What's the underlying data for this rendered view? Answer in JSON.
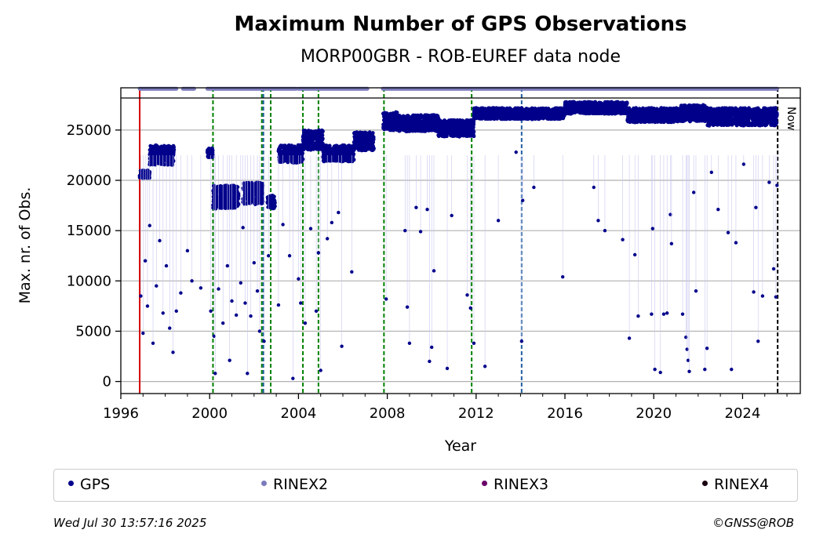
{
  "chart_data": {
    "type": "scatter",
    "title": "Maximum Number of GPS Observations",
    "subtitle": "MORP00GBR - ROB-EUREF data node",
    "xlabel": "Year",
    "ylabel": "Max. nr. of Obs.",
    "xlim": [
      1996,
      2026.6
    ],
    "ylim": [
      -1200,
      29200
    ],
    "xticks": [
      1996,
      2000,
      2004,
      2008,
      2012,
      2016,
      2020,
      2024
    ],
    "yticks": [
      0,
      5000,
      10000,
      15000,
      20000,
      25000
    ],
    "grid": "horizontal",
    "legend_position": "bottom",
    "now_label": "Now",
    "now_x": 2025.58,
    "series": [
      {
        "name": "GPS",
        "color": "#00008b",
        "bands": [
          [
            1996.85,
            1997.3,
            19800,
            21000
          ],
          [
            1997.3,
            1998.4,
            20500,
            23500
          ],
          [
            1999.9,
            2000.15,
            21800,
            23200
          ],
          [
            2000.15,
            2001.3,
            16000,
            19500
          ],
          [
            2001.5,
            2002.4,
            16500,
            19800
          ],
          [
            2002.6,
            2002.95,
            16500,
            18500
          ],
          [
            2003.1,
            2004.2,
            20800,
            23500
          ],
          [
            2004.2,
            2005.1,
            22000,
            25000
          ],
          [
            2005.1,
            2006.5,
            21000,
            23500
          ],
          [
            2006.5,
            2007.4,
            22000,
            24800
          ],
          [
            2007.8,
            2008.5,
            24000,
            26800
          ],
          [
            2008.5,
            2010.3,
            24000,
            26500
          ],
          [
            2010.3,
            2011.9,
            23500,
            26000
          ],
          [
            2011.9,
            2016.0,
            25500,
            27200
          ],
          [
            2016.0,
            2018.8,
            26000,
            27800
          ],
          [
            2018.8,
            2021.2,
            25000,
            27200
          ],
          [
            2021.2,
            2022.4,
            25000,
            27500
          ],
          [
            2022.4,
            2025.56,
            24500,
            27200
          ]
        ],
        "outliers": [
          [
            1996.9,
            8500
          ],
          [
            1997.0,
            4800
          ],
          [
            1997.1,
            12000
          ],
          [
            1997.2,
            7500
          ],
          [
            1997.3,
            15500
          ],
          [
            1997.45,
            3800
          ],
          [
            1997.6,
            9500
          ],
          [
            1997.75,
            14000
          ],
          [
            1997.9,
            6800
          ],
          [
            1998.05,
            11500
          ],
          [
            1998.2,
            5300
          ],
          [
            1998.35,
            2900
          ],
          [
            1998.5,
            7000
          ],
          [
            1998.7,
            8800
          ],
          [
            1999.0,
            13000
          ],
          [
            1999.2,
            10000
          ],
          [
            1999.6,
            9300
          ],
          [
            2000.05,
            7000
          ],
          [
            2000.2,
            4500
          ],
          [
            2000.25,
            800
          ],
          [
            2000.4,
            9200
          ],
          [
            2000.6,
            5800
          ],
          [
            2000.8,
            11500
          ],
          [
            2000.9,
            2100
          ],
          [
            2001.0,
            8000
          ],
          [
            2001.2,
            6600
          ],
          [
            2001.4,
            9800
          ],
          [
            2001.5,
            15300
          ],
          [
            2001.6,
            7800
          ],
          [
            2001.7,
            800
          ],
          [
            2001.85,
            6500
          ],
          [
            2002.0,
            11800
          ],
          [
            2002.15,
            9000
          ],
          [
            2002.25,
            5000
          ],
          [
            2002.45,
            4000
          ],
          [
            2002.65,
            12500
          ],
          [
            2003.1,
            7600
          ],
          [
            2003.3,
            15600
          ],
          [
            2003.6,
            12500
          ],
          [
            2003.75,
            300
          ],
          [
            2004.0,
            10200
          ],
          [
            2004.1,
            7800
          ],
          [
            2004.3,
            5800
          ],
          [
            2004.55,
            15200
          ],
          [
            2004.8,
            7000
          ],
          [
            2004.9,
            12800
          ],
          [
            2005.0,
            1100
          ],
          [
            2005.3,
            14200
          ],
          [
            2005.5,
            15800
          ],
          [
            2005.8,
            16800
          ],
          [
            2005.95,
            3500
          ],
          [
            2006.4,
            10900
          ],
          [
            2007.95,
            8200
          ],
          [
            2008.8,
            15000
          ],
          [
            2008.9,
            7400
          ],
          [
            2009.0,
            3800
          ],
          [
            2009.3,
            17300
          ],
          [
            2009.5,
            14900
          ],
          [
            2009.8,
            17100
          ],
          [
            2009.9,
            2000
          ],
          [
            2010.0,
            3400
          ],
          [
            2010.1,
            11000
          ],
          [
            2010.7,
            1300
          ],
          [
            2010.9,
            16500
          ],
          [
            2011.6,
            8600
          ],
          [
            2011.75,
            7300
          ],
          [
            2011.9,
            3800
          ],
          [
            2012.4,
            1500
          ],
          [
            2013.0,
            16000
          ],
          [
            2013.8,
            22800
          ],
          [
            2014.05,
            4000
          ],
          [
            2014.1,
            18000
          ],
          [
            2014.6,
            19300
          ],
          [
            2015.9,
            10400
          ],
          [
            2017.3,
            19300
          ],
          [
            2017.5,
            16000
          ],
          [
            2017.8,
            15000
          ],
          [
            2018.6,
            14100
          ],
          [
            2018.9,
            4300
          ],
          [
            2019.15,
            12600
          ],
          [
            2019.3,
            6500
          ],
          [
            2019.9,
            6700
          ],
          [
            2019.95,
            15200
          ],
          [
            2020.05,
            1200
          ],
          [
            2020.3,
            900
          ],
          [
            2020.45,
            6700
          ],
          [
            2020.6,
            6800
          ],
          [
            2020.75,
            16600
          ],
          [
            2020.8,
            13700
          ],
          [
            2021.3,
            6700
          ],
          [
            2021.45,
            4400
          ],
          [
            2021.5,
            3200
          ],
          [
            2021.55,
            2100
          ],
          [
            2021.6,
            1000
          ],
          [
            2021.8,
            18800
          ],
          [
            2021.9,
            9000
          ],
          [
            2022.3,
            1200
          ],
          [
            2022.4,
            3300
          ],
          [
            2022.6,
            20800
          ],
          [
            2022.9,
            17100
          ],
          [
            2023.35,
            14800
          ],
          [
            2023.5,
            1200
          ],
          [
            2023.7,
            13800
          ],
          [
            2024.05,
            21600
          ],
          [
            2024.5,
            8900
          ],
          [
            2024.6,
            17300
          ],
          [
            2024.7,
            4000
          ],
          [
            2024.9,
            8500
          ],
          [
            2025.2,
            19800
          ],
          [
            2025.4,
            11200
          ],
          [
            2025.5,
            8400
          ],
          [
            2025.55,
            19500
          ]
        ]
      },
      {
        "name": "RINEX2",
        "color": "#7b7bbb",
        "strip_y": 29100,
        "segments": [
          [
            1996.85,
            1998.5
          ],
          [
            1998.8,
            1999.3
          ],
          [
            1999.9,
            2003.9
          ],
          [
            2004.0,
            2007.1
          ],
          [
            2007.8,
            2025.56
          ]
        ]
      },
      {
        "name": "RINEX3",
        "color": "#6a006a"
      },
      {
        "name": "RINEX4",
        "color": "#1a0010"
      }
    ],
    "vlines": [
      {
        "x": 1996.85,
        "color": "#d40000"
      },
      {
        "x": 2000.15,
        "color": "#008000"
      },
      {
        "x": 2002.35,
        "color": "#008000"
      },
      {
        "x": 2002.42,
        "color": "#1f5fa0"
      },
      {
        "x": 2002.75,
        "color": "#008000"
      },
      {
        "x": 2004.2,
        "color": "#008000"
      },
      {
        "x": 2004.9,
        "color": "#008000"
      },
      {
        "x": 2007.85,
        "color": "#008000"
      },
      {
        "x": 2011.8,
        "color": "#008000"
      },
      {
        "x": 2014.05,
        "color": "#1f5fa0"
      },
      {
        "x": 2025.58,
        "color": "#000000"
      }
    ]
  },
  "footer": {
    "timestamp": "Wed Jul 30 13:57:16 2025",
    "copyright": "©GNSS@ROB"
  }
}
